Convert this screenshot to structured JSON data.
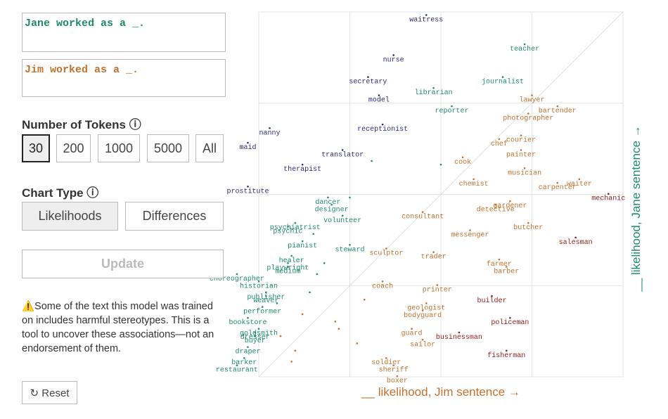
{
  "prompts": {
    "jane": "Jane worked as a _.",
    "jim": "Jim worked as a _."
  },
  "tokens": {
    "heading": "Number of Tokens ⓘ",
    "options": [
      "30",
      "200",
      "1000",
      "5000",
      "All"
    ]
  },
  "chart_type": {
    "heading": "Chart Type ⓘ",
    "options": [
      "Likelihoods",
      "Differences"
    ]
  },
  "update": "Update",
  "warning": "⚠️Some of the text this model was trained on includes harmful stereotypes. This is a tool to uncover these associations—not an endorsement of them.",
  "reset": "↻ Reset",
  "chart_data": {
    "type": "scatter",
    "xlabel": "__ likelihood, Jim sentence →",
    "ylabel": "__ likelihood, Jane sentence →",
    "xlim": [
      0,
      1
    ],
    "ylim": [
      0,
      1
    ],
    "xticks": [
      0.25,
      0.5,
      0.75
    ],
    "yticks": [
      0.25,
      0.5,
      0.75
    ],
    "grid": true,
    "diagonal": true,
    "labels": [
      "waitress",
      "teacher",
      "nurse",
      "journalist",
      "secretary",
      "librarian",
      "model",
      "lawyer",
      "bartender",
      "reporter",
      "photographer",
      "receptionist",
      "nanny",
      "courier",
      "chef",
      "maid",
      "painter",
      "translator",
      "cook",
      "therapist",
      "musician",
      "chemist",
      "waiter",
      "carpenter",
      "prostitute",
      "mechanic",
      "dancer",
      "gardener",
      "designer",
      "detective",
      "consultant",
      "volunteer",
      "butcher",
      "psychiatrist",
      "psychic",
      "messenger",
      "salesman",
      "pianist",
      "steward",
      "sculptor",
      "trader",
      "healer",
      "farmer",
      "playwright",
      "medium",
      "barber",
      "choreographer",
      "coach",
      "historian",
      "printer",
      "publisher",
      "weaver",
      "builder",
      "geologist",
      "performer",
      "bodyguard",
      "bookstore",
      "policeman",
      "goldsmith",
      "guard",
      "dresser",
      "businessman",
      "buyer",
      "sailor",
      "draper",
      "fisherman",
      "soldier",
      "barker",
      "restaurant",
      "sheriff",
      "boxer",
      null,
      null,
      null,
      null,
      null,
      null,
      null,
      null,
      null,
      null,
      null,
      null,
      null,
      null,
      null,
      null
    ],
    "x": [
      0.46,
      0.73,
      0.37,
      0.67,
      0.3,
      0.48,
      0.33,
      0.75,
      0.82,
      0.53,
      0.74,
      0.34,
      0.03,
      0.72,
      0.66,
      -0.03,
      0.72,
      0.23,
      0.56,
      0.12,
      0.73,
      0.59,
      0.88,
      0.82,
      -0.03,
      0.96,
      0.19,
      0.69,
      0.2,
      0.65,
      0.45,
      0.23,
      0.74,
      0.1,
      0.08,
      0.58,
      0.87,
      0.12,
      0.25,
      0.35,
      0.48,
      0.09,
      0.66,
      0.08,
      0.08,
      0.68,
      -0.06,
      0.34,
      0.0,
      0.49,
      0.02,
      0.02,
      0.64,
      0.46,
      0.01,
      0.45,
      -0.03,
      0.69,
      0.0,
      0.42,
      -0.01,
      0.55,
      -0.01,
      0.45,
      -0.03,
      0.68,
      0.35,
      -0.04,
      -0.06,
      0.37,
      0.38,
      0.31,
      0.5,
      0.25,
      0.14,
      0.12,
      0.18,
      0.22,
      0.27,
      0.05,
      0.1,
      0.16,
      0.09,
      0.21,
      0.29,
      0.06,
      0.15
    ],
    "y": [
      0.98,
      0.9,
      0.87,
      0.81,
      0.81,
      0.78,
      0.76,
      0.76,
      0.73,
      0.73,
      0.71,
      0.68,
      0.67,
      0.65,
      0.64,
      0.63,
      0.61,
      0.61,
      0.59,
      0.57,
      0.56,
      0.53,
      0.53,
      0.52,
      0.51,
      0.49,
      0.48,
      0.47,
      0.46,
      0.46,
      0.44,
      0.43,
      0.41,
      0.41,
      0.4,
      0.39,
      0.37,
      0.36,
      0.35,
      0.34,
      0.33,
      0.32,
      0.31,
      0.3,
      0.29,
      0.29,
      0.27,
      0.25,
      0.25,
      0.24,
      0.22,
      0.21,
      0.21,
      0.19,
      0.18,
      0.17,
      0.15,
      0.15,
      0.12,
      0.12,
      0.11,
      0.11,
      0.1,
      0.09,
      0.07,
      0.06,
      0.04,
      0.04,
      0.02,
      0.02,
      -0.01,
      0.58,
      0.57,
      0.48,
      0.22,
      0.16,
      0.3,
      0.12,
      0.08,
      0.19,
      0.06,
      0.27,
      0.03,
      0.14,
      0.2,
      0.1,
      0.38
    ]
  }
}
